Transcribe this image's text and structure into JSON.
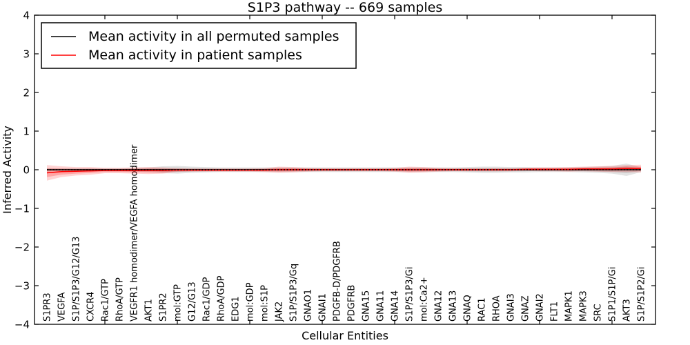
{
  "chart_data": {
    "type": "line",
    "title": "S1P3 pathway -- 669 samples",
    "xlabel": "Cellular Entities",
    "ylabel": "Inferred Activity",
    "ylim": [
      -4,
      4
    ],
    "yticks": [
      -4,
      -3,
      -2,
      -1,
      0,
      1,
      2,
      3,
      4
    ],
    "xticks_numeric": [
      5,
      10,
      15,
      20,
      25,
      30,
      35,
      40
    ],
    "grid": false,
    "legend_position": "upper left",
    "categories": [
      "S1PR3",
      "VEGFA",
      "S1P/S1P3/G12/G13",
      "CXCR4",
      "Rac1/GTP",
      "RhoA/GTP",
      "VEGFR1 homodimer/VEGFA homodimer",
      "AKT1",
      "S1PR2",
      "mol:GTP",
      "G12/G13",
      "Rac1/GDP",
      "RhoA/GDP",
      "EDG1",
      "mol:GDP",
      "mol:S1P",
      "JAK2",
      "S1P/S1P3/Gq",
      "GNAO1",
      "GNAI1",
      "PDGFB-D/PDGFRB",
      "PDGFRB",
      "GNA15",
      "GNA11",
      "GNA14",
      "S1P/S1P3/Gi",
      "mol:Ca2+",
      "GNA12",
      "GNA13",
      "GNAQ",
      "RAC1",
      "RHOA",
      "GNAI3",
      "GNAZ",
      "GNAI2",
      "FLT1",
      "MAPK1",
      "MAPK3",
      "SRC",
      "S1P1/S1P/Gi",
      "AKT3",
      "S1P/S1P2/Gi"
    ],
    "series": [
      {
        "name": "Mean activity in all permuted samples",
        "color": "#000000",
        "band_color": "#000000",
        "values": [
          0,
          0,
          0,
          0,
          0,
          0,
          0,
          0,
          0,
          0,
          0,
          0,
          0,
          0,
          0,
          0,
          0,
          0,
          0,
          0,
          0,
          0,
          0,
          0,
          0,
          0,
          0,
          0,
          0,
          0,
          0,
          0,
          0,
          0,
          0,
          0,
          0,
          0,
          0,
          0,
          0,
          0
        ],
        "band_halfwidth": [
          0.04,
          0.04,
          0.04,
          0.04,
          0.04,
          0.04,
          0.05,
          0.06,
          0.09,
          0.1,
          0.08,
          0.07,
          0.06,
          0.06,
          0.06,
          0.06,
          0.06,
          0.06,
          0.06,
          0.06,
          0.06,
          0.06,
          0.06,
          0.06,
          0.06,
          0.06,
          0.06,
          0.06,
          0.06,
          0.07,
          0.08,
          0.08,
          0.07,
          0.07,
          0.06,
          0.06,
          0.06,
          0.07,
          0.08,
          0.1,
          0.16,
          0.06
        ]
      },
      {
        "name": "Mean activity in patient samples",
        "color": "#ff0000",
        "band_color": "#ff0000",
        "values": [
          -0.08,
          -0.05,
          -0.04,
          -0.03,
          -0.02,
          -0.02,
          -0.02,
          -0.02,
          -0.02,
          -0.01,
          -0.01,
          -0.01,
          -0.01,
          -0.01,
          -0.01,
          -0.01,
          0,
          0,
          0,
          0,
          0,
          0,
          0,
          0,
          0,
          0,
          0,
          0,
          0,
          0,
          0,
          0,
          0,
          0.01,
          0.01,
          0.01,
          0.01,
          0.02,
          0.02,
          0.02,
          0.03,
          0.03
        ],
        "band_halfwidth": [
          0.2,
          0.14,
          0.11,
          0.1,
          0.07,
          0.07,
          0.08,
          0.09,
          0.08,
          0.05,
          0.04,
          0.04,
          0.04,
          0.04,
          0.04,
          0.05,
          0.08,
          0.07,
          0.05,
          0.04,
          0.04,
          0.04,
          0.04,
          0.04,
          0.05,
          0.08,
          0.07,
          0.05,
          0.04,
          0.04,
          0.04,
          0.04,
          0.04,
          0.04,
          0.05,
          0.05,
          0.06,
          0.06,
          0.07,
          0.08,
          0.09,
          0.1
        ]
      }
    ],
    "zero_reference_line": 0
  }
}
